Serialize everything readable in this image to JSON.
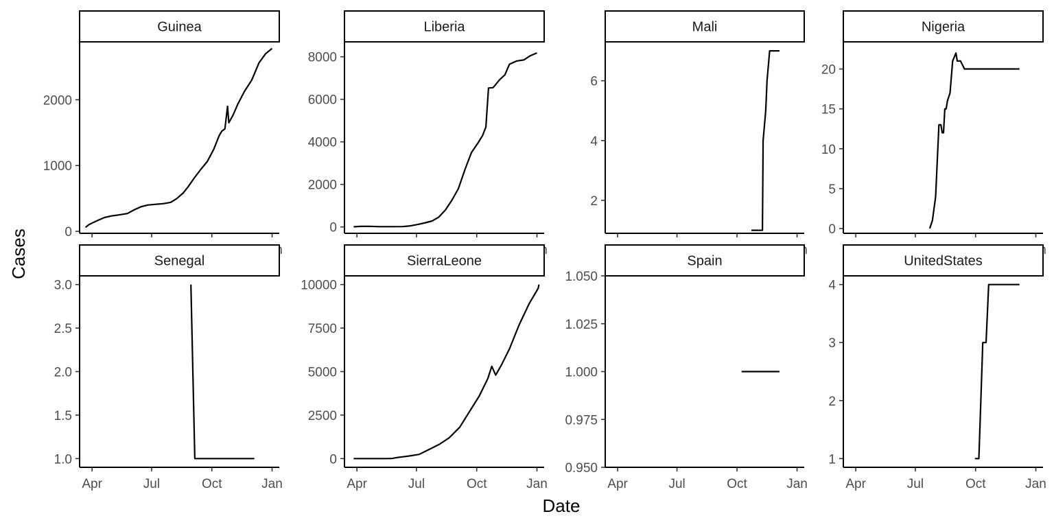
{
  "chart_data": {
    "type": "line",
    "facet_layout": "2 rows x 4 columns, free y scales, shared x scale",
    "xlabel": "Date",
    "ylabel": "Cases",
    "x_ticks": [
      "Apr",
      "Jul",
      "Oct",
      "Jan"
    ],
    "x_tick_dates": [
      "2014-04-01",
      "2014-07-01",
      "2014-10-01",
      "2015-01-01"
    ],
    "xlim": [
      "2014-03-13",
      "2015-01-12"
    ],
    "grid": false,
    "legend": "none",
    "panels": [
      {
        "label": "Guinea",
        "ylim": [
          -30,
          2880
        ],
        "y_ticks": [
          0,
          1000,
          2000
        ],
        "y_tick_labels": [
          "0",
          "1000",
          "2000"
        ],
        "points": [
          [
            "2014-03-22",
            60
          ],
          [
            "2014-03-27",
            100
          ],
          [
            "2014-04-04",
            140
          ],
          [
            "2014-04-12",
            175
          ],
          [
            "2014-04-20",
            210
          ],
          [
            "2014-05-01",
            235
          ],
          [
            "2014-05-12",
            250
          ],
          [
            "2014-05-25",
            270
          ],
          [
            "2014-06-05",
            330
          ],
          [
            "2014-06-15",
            375
          ],
          [
            "2014-06-25",
            400
          ],
          [
            "2014-07-06",
            410
          ],
          [
            "2014-07-18",
            420
          ],
          [
            "2014-07-30",
            440
          ],
          [
            "2014-08-08",
            495
          ],
          [
            "2014-08-18",
            580
          ],
          [
            "2014-08-26",
            680
          ],
          [
            "2014-09-04",
            810
          ],
          [
            "2014-09-14",
            940
          ],
          [
            "2014-09-24",
            1060
          ],
          [
            "2014-10-04",
            1250
          ],
          [
            "2014-10-12",
            1450
          ],
          [
            "2014-10-16",
            1520
          ],
          [
            "2014-10-21",
            1560
          ],
          [
            "2014-10-25",
            1900
          ],
          [
            "2014-10-27",
            1650
          ],
          [
            "2014-11-02",
            1760
          ],
          [
            "2014-11-10",
            1940
          ],
          [
            "2014-11-20",
            2130
          ],
          [
            "2014-12-01",
            2300
          ],
          [
            "2014-12-12",
            2560
          ],
          [
            "2014-12-22",
            2700
          ],
          [
            "2015-01-01",
            2780
          ]
        ]
      },
      {
        "label": "Liberia",
        "ylim": [
          -300,
          8700
        ],
        "y_ticks": [
          0,
          2000,
          4000,
          6000,
          8000
        ],
        "y_tick_labels": [
          "0",
          "2000",
          "4000",
          "6000",
          "8000"
        ],
        "points": [
          [
            "2014-03-27",
            8
          ],
          [
            "2014-04-07",
            25
          ],
          [
            "2014-04-20",
            30
          ],
          [
            "2014-05-05",
            12
          ],
          [
            "2014-05-25",
            12
          ],
          [
            "2014-06-10",
            15
          ],
          [
            "2014-06-22",
            50
          ],
          [
            "2014-07-05",
            130
          ],
          [
            "2014-07-15",
            200
          ],
          [
            "2014-07-25",
            280
          ],
          [
            "2014-08-04",
            460
          ],
          [
            "2014-08-14",
            790
          ],
          [
            "2014-08-24",
            1250
          ],
          [
            "2014-09-03",
            1800
          ],
          [
            "2014-09-13",
            2700
          ],
          [
            "2014-09-23",
            3500
          ],
          [
            "2014-10-03",
            3950
          ],
          [
            "2014-10-10",
            4300
          ],
          [
            "2014-10-15",
            4700
          ],
          [
            "2014-10-19",
            6530
          ],
          [
            "2014-10-26",
            6550
          ],
          [
            "2014-11-05",
            6920
          ],
          [
            "2014-11-13",
            7150
          ],
          [
            "2014-11-20",
            7650
          ],
          [
            "2014-12-01",
            7800
          ],
          [
            "2014-12-12",
            7850
          ],
          [
            "2014-12-22",
            8050
          ],
          [
            "2015-01-01",
            8180
          ]
        ]
      },
      {
        "label": "Mali",
        "ylim": [
          0.9,
          7.3
        ],
        "y_ticks": [
          2,
          4,
          6
        ],
        "y_tick_labels": [
          "2",
          "4",
          "6"
        ],
        "points": [
          [
            "2014-10-23",
            1
          ],
          [
            "2014-11-09",
            1
          ],
          [
            "2014-11-10",
            4
          ],
          [
            "2014-11-14",
            5
          ],
          [
            "2014-11-16",
            6
          ],
          [
            "2014-11-20",
            7
          ],
          [
            "2014-12-05",
            7
          ]
        ]
      },
      {
        "label": "Nigeria",
        "ylim": [
          -0.6,
          23.4
        ],
        "y_ticks": [
          0,
          5,
          10,
          15,
          20
        ],
        "y_tick_labels": [
          "0",
          "5",
          "10",
          "15",
          "20"
        ],
        "points": [
          [
            "2014-07-23",
            0
          ],
          [
            "2014-07-27",
            1
          ],
          [
            "2014-08-01",
            4
          ],
          [
            "2014-08-06",
            13
          ],
          [
            "2014-08-09",
            13
          ],
          [
            "2014-08-11",
            12
          ],
          [
            "2014-08-13",
            12
          ],
          [
            "2014-08-15",
            15
          ],
          [
            "2014-08-17",
            15
          ],
          [
            "2014-08-19",
            16
          ],
          [
            "2014-08-23",
            17
          ],
          [
            "2014-08-27",
            21
          ],
          [
            "2014-09-01",
            22
          ],
          [
            "2014-09-03",
            21
          ],
          [
            "2014-09-08",
            21
          ],
          [
            "2014-09-14",
            20
          ],
          [
            "2014-12-07",
            20
          ]
        ]
      },
      {
        "label": "Senegal",
        "ylim": [
          0.9,
          3.1
        ],
        "y_ticks": [
          1.0,
          1.5,
          2.0,
          2.5,
          3.0
        ],
        "y_tick_labels": [
          "1.0",
          "1.5",
          "2.0",
          "2.5",
          "3.0"
        ],
        "points": [
          [
            "2014-08-30",
            3
          ],
          [
            "2014-09-05",
            1
          ],
          [
            "2014-12-05",
            1
          ]
        ]
      },
      {
        "label": "SierraLeone",
        "ylim": [
          -500,
          10500
        ],
        "y_ticks": [
          0,
          2500,
          5000,
          7500,
          10000
        ],
        "y_tick_labels": [
          "0",
          "2500",
          "5000",
          "7500",
          "10000"
        ],
        "points": [
          [
            "2014-03-27",
            0
          ],
          [
            "2014-05-15",
            0
          ],
          [
            "2014-05-25",
            10
          ],
          [
            "2014-06-01",
            60
          ],
          [
            "2014-06-20",
            150
          ],
          [
            "2014-07-05",
            240
          ],
          [
            "2014-07-20",
            520
          ],
          [
            "2014-08-05",
            820
          ],
          [
            "2014-08-20",
            1200
          ],
          [
            "2014-09-05",
            1800
          ],
          [
            "2014-09-20",
            2700
          ],
          [
            "2014-10-05",
            3600
          ],
          [
            "2014-10-18",
            4600
          ],
          [
            "2014-10-24",
            5300
          ],
          [
            "2014-10-30",
            4800
          ],
          [
            "2014-11-08",
            5400
          ],
          [
            "2014-11-20",
            6300
          ],
          [
            "2014-12-05",
            7700
          ],
          [
            "2014-12-20",
            8900
          ],
          [
            "2014-12-31",
            9600
          ],
          [
            "2015-01-03",
            9800
          ],
          [
            "2015-01-04",
            10000
          ]
        ]
      },
      {
        "label": "Spain",
        "ylim": [
          0.95,
          1.05
        ],
        "y_ticks": [
          0.95,
          0.975,
          1.0,
          1.025,
          1.05
        ],
        "y_tick_labels": [
          "0.950",
          "0.975",
          "1.000",
          "1.025",
          "1.050"
        ],
        "points": [
          [
            "2014-10-08",
            1
          ],
          [
            "2014-12-05",
            1
          ]
        ]
      },
      {
        "label": "UnitedStates",
        "ylim": [
          0.85,
          4.15
        ],
        "y_ticks": [
          1,
          2,
          3,
          4
        ],
        "y_tick_labels": [
          "1",
          "2",
          "3",
          "4"
        ],
        "points": [
          [
            "2014-09-30",
            1
          ],
          [
            "2014-10-06",
            1
          ],
          [
            "2014-10-09",
            2
          ],
          [
            "2014-10-12",
            3
          ],
          [
            "2014-10-17",
            3
          ],
          [
            "2014-10-21",
            4
          ],
          [
            "2014-12-07",
            4
          ]
        ]
      }
    ]
  }
}
